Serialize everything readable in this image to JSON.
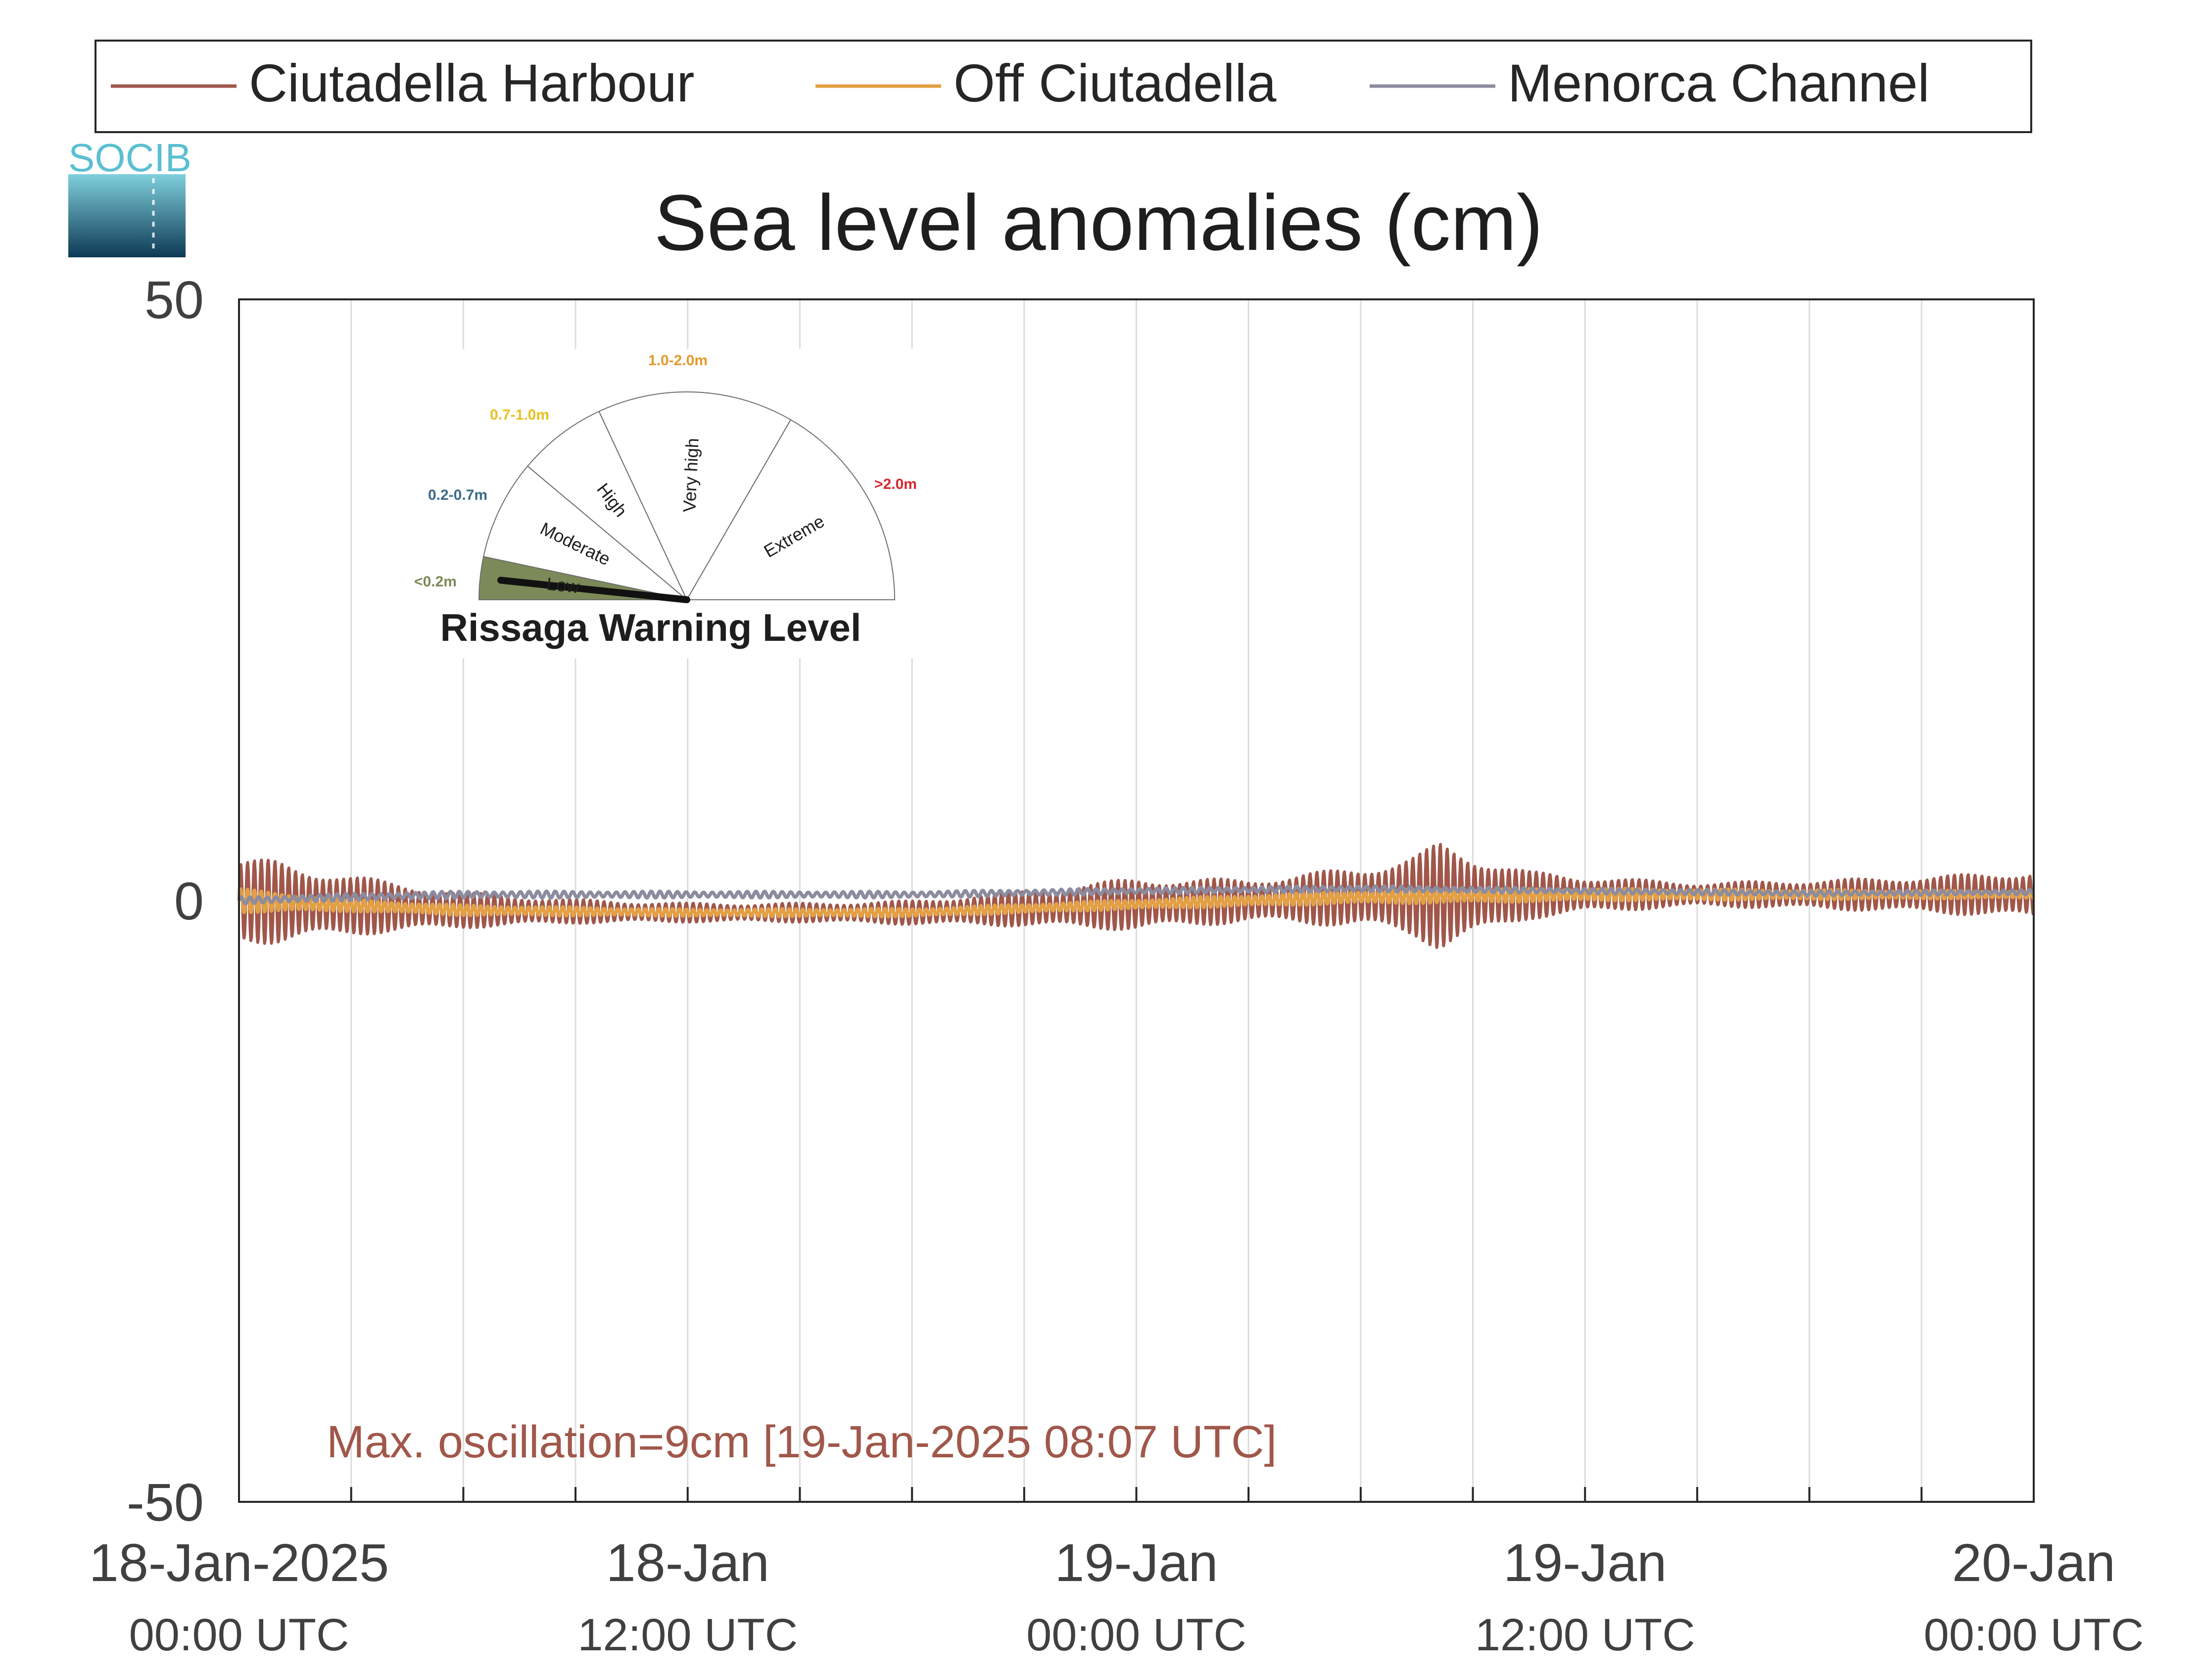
{
  "logo": {
    "text": "SOCIB",
    "colors": {
      "text": "#5bbfd2",
      "gradient_top": "#7fcfdb",
      "gradient_bottom": "#0d3a56"
    }
  },
  "legend": {
    "items": [
      {
        "label": "Ciutadella Harbour",
        "color": "#a0574a"
      },
      {
        "label": "Off Ciutadella",
        "color": "#e39f43"
      },
      {
        "label": "Menorca Channel",
        "color": "#8c8ca0"
      }
    ]
  },
  "gauge": {
    "title": "Rissaga Warning Level",
    "sectors": [
      {
        "label": "Low",
        "range": "<0.2m",
        "range_color": "#7b8a58",
        "fill": "#7b8a58",
        "active": true
      },
      {
        "label": "Moderate",
        "range": "0.2-0.7m",
        "range_color": "#3b6b88",
        "fill": "#ffffff",
        "active": false
      },
      {
        "label": "High",
        "range": "0.7-1.0m",
        "range_color": "#e8c021",
        "fill": "#ffffff",
        "active": false
      },
      {
        "label": "Very high",
        "range": "1.0-2.0m",
        "range_color": "#e39a2d",
        "fill": "#ffffff",
        "active": false
      },
      {
        "label": "Extreme",
        "range": ">2.0m",
        "range_color": "#d7262c",
        "fill": "#ffffff",
        "active": false
      }
    ],
    "needle_level": "Low"
  },
  "annotation": {
    "text": "Max. oscillation=9cm [19-Jan-2025 08:07 UTC]",
    "color": "#a0574a"
  },
  "chart_data": {
    "type": "line",
    "title": "Sea level anomalies (cm)",
    "xlabel": "",
    "ylabel": "",
    "ylim": [
      -50,
      50
    ],
    "yticks": [
      50,
      0,
      -50
    ],
    "ytick_labels": [
      "50",
      "0",
      "-50"
    ],
    "xlim": [
      "2025-01-18 00:00",
      "2025-01-20 00:00"
    ],
    "xticks": [
      {
        "time": "2025-01-18 00:00",
        "line1": "18-Jan-2025",
        "line2": "00:00 UTC"
      },
      {
        "time": "2025-01-18 12:00",
        "line1": "18-Jan",
        "line2": "12:00 UTC"
      },
      {
        "time": "2025-01-19 00:00",
        "line1": "19-Jan",
        "line2": "00:00 UTC"
      },
      {
        "time": "2025-01-19 12:00",
        "line1": "19-Jan",
        "line2": "12:00 UTC"
      },
      {
        "time": "2025-01-20 00:00",
        "line1": "20-Jan",
        "line2": "00:00 UTC"
      }
    ],
    "grid": "vertical every 3 hours",
    "legend_position": "top",
    "series": [
      {
        "name": "Ciutadella Harbour",
        "color": "#a0574a",
        "baseline": [
          [
            "2025-01-18 00:00",
            0.0
          ],
          [
            "2025-01-18 06:00",
            -0.8
          ],
          [
            "2025-01-18 12:00",
            -1.0
          ],
          [
            "2025-01-18 18:00",
            -1.0
          ],
          [
            "2025-01-19 00:00",
            -0.3
          ],
          [
            "2025-01-19 06:00",
            0.3
          ],
          [
            "2025-01-19 12:00",
            0.5
          ],
          [
            "2025-01-19 18:00",
            0.5
          ],
          [
            "2025-01-20 00:00",
            0.5
          ]
        ],
        "oscillation_half_range_cm": [
          [
            "2025-01-18 00:00",
            3.5
          ],
          [
            "2025-01-18 01:00",
            3.5
          ],
          [
            "2025-01-18 03:00",
            2.5
          ],
          [
            "2025-01-18 06:00",
            1.5
          ],
          [
            "2025-01-18 09:00",
            1.0
          ],
          [
            "2025-01-18 12:00",
            0.8
          ],
          [
            "2025-01-18 15:00",
            0.8
          ],
          [
            "2025-01-18 18:00",
            1.0
          ],
          [
            "2025-01-18 21:00",
            1.5
          ],
          [
            "2025-01-19 00:00",
            2.2
          ],
          [
            "2025-01-19 03:00",
            1.8
          ],
          [
            "2025-01-19 06:00",
            2.5
          ],
          [
            "2025-01-19 07:30",
            3.5
          ],
          [
            "2025-01-19 08:07",
            4.5
          ],
          [
            "2025-01-19 09:00",
            3.5
          ],
          [
            "2025-01-19 10:30",
            2.0
          ],
          [
            "2025-01-19 12:00",
            1.5
          ],
          [
            "2025-01-19 15:00",
            1.0
          ],
          [
            "2025-01-19 18:00",
            1.2
          ],
          [
            "2025-01-19 21:00",
            1.5
          ],
          [
            "2025-01-20 00:00",
            2.0
          ]
        ]
      },
      {
        "name": "Off Ciutadella",
        "color": "#e39f43",
        "baseline": [
          [
            "2025-01-18 00:00",
            0.0
          ],
          [
            "2025-01-18 06:00",
            -0.8
          ],
          [
            "2025-01-18 12:00",
            -1.0
          ],
          [
            "2025-01-18 18:00",
            -1.0
          ],
          [
            "2025-01-19 00:00",
            -0.3
          ],
          [
            "2025-01-19 06:00",
            0.3
          ],
          [
            "2025-01-19 12:00",
            0.5
          ],
          [
            "2025-01-19 18:00",
            0.5
          ],
          [
            "2025-01-20 00:00",
            0.5
          ]
        ],
        "oscillation_half_range_cm": [
          [
            "2025-01-18 00:00",
            1.0
          ],
          [
            "2025-01-18 03:00",
            0.5
          ],
          [
            "2025-01-18 12:00",
            0.3
          ],
          [
            "2025-01-19 00:00",
            0.4
          ],
          [
            "2025-01-19 08:00",
            0.6
          ],
          [
            "2025-01-20 00:00",
            0.3
          ]
        ]
      },
      {
        "name": "Menorca Channel",
        "color": "#8c8ca0",
        "baseline": [
          [
            "2025-01-18 00:00",
            0.0
          ],
          [
            "2025-01-18 03:00",
            0.3
          ],
          [
            "2025-01-18 06:00",
            0.5
          ],
          [
            "2025-01-18 12:00",
            0.5
          ],
          [
            "2025-01-18 18:00",
            0.5
          ],
          [
            "2025-01-19 00:00",
            0.8
          ],
          [
            "2025-01-19 06:00",
            1.0
          ],
          [
            "2025-01-19 12:00",
            0.8
          ],
          [
            "2025-01-19 18:00",
            0.6
          ],
          [
            "2025-01-20 00:00",
            0.7
          ]
        ],
        "oscillation_half_range_cm": [
          [
            "2025-01-18 00:00",
            0.3
          ],
          [
            "2025-01-20 00:00",
            0.2
          ]
        ]
      }
    ]
  }
}
